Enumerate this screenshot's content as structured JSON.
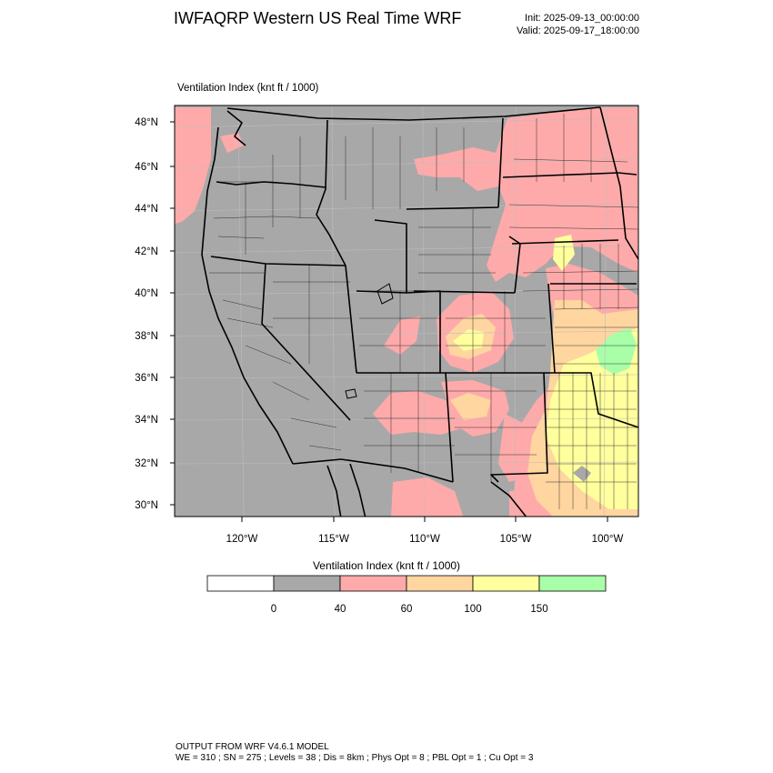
{
  "header": {
    "title": "IWFAQRP Western US Real Time WRF",
    "init": "Init: 2025-09-13_00:00:00",
    "valid": "Valid: 2025-09-17_18:00:00"
  },
  "plot": {
    "label": "Ventilation Index   (knt ft / 1000)"
  },
  "map": {
    "lat_labels": [
      "48°N",
      "46°N",
      "44°N",
      "42°N",
      "40°N",
      "38°N",
      "36°N",
      "34°N",
      "32°N",
      "30°N"
    ],
    "lon_labels": [
      "120°W",
      "115°W",
      "110°W",
      "105°W",
      "100°W"
    ],
    "colors": {
      "background": "#a8a8a8",
      "band_40_60": "#ffaaaa",
      "band_60_100": "#ffd5a0",
      "band_100_150": "#ffff9d",
      "band_150_plus": "#a8ffa8",
      "boundary": "#000000"
    }
  },
  "colorbar": {
    "title": "Ventilation Index   (knt ft / 1000)",
    "ticks": [
      "0",
      "40",
      "60",
      "100",
      "150"
    ],
    "colors": [
      "#ffffff",
      "#a8a8a8",
      "#ffaaaa",
      "#ffd5a0",
      "#ffff9d",
      "#a8ffa8"
    ]
  },
  "footer": {
    "line1": "OUTPUT FROM WRF V4.6.1 MODEL",
    "line2": "WE = 310 ; SN = 275 ; Levels = 38 ; Dis = 8km ; Phys Opt = 8 ; PBL Opt = 1 ; Cu Opt = 3"
  }
}
